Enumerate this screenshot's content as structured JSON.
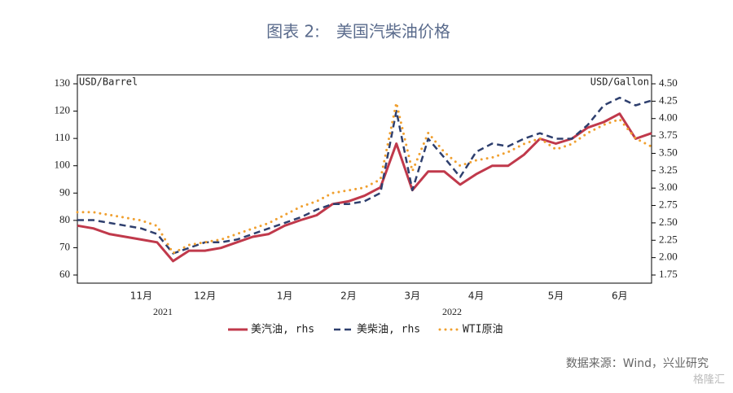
{
  "chart_data": {
    "type": "line",
    "title": "图表 2:　美国汽柴油价格",
    "ylabel": "USD/Barrel",
    "y2label": "USD/Gallon",
    "categories": [
      null,
      null,
      null,
      null,
      "11月",
      null,
      null,
      null,
      "12月",
      null,
      null,
      null,
      null,
      "1月",
      null,
      null,
      null,
      "2月",
      null,
      null,
      null,
      "3月",
      null,
      null,
      null,
      "4月",
      null,
      null,
      null,
      null,
      "5月",
      null,
      null,
      null,
      "6月",
      null,
      null
    ],
    "year_labels": [
      "2021",
      "2022"
    ],
    "series": [
      {
        "name": "美汽油, rhs",
        "color": "#c0394b",
        "axis": "y2",
        "style": "solid",
        "values": [
          2.46,
          2.42,
          2.34,
          2.3,
          2.26,
          2.22,
          1.95,
          2.1,
          2.1,
          2.14,
          2.22,
          2.3,
          2.34,
          2.46,
          2.54,
          2.61,
          2.77,
          2.81,
          2.89,
          3.01,
          3.64,
          2.97,
          3.24,
          3.24,
          3.05,
          3.2,
          3.32,
          3.32,
          3.48,
          3.71,
          3.64,
          3.71,
          3.87,
          3.95,
          4.07,
          3.71,
          3.79
        ]
      },
      {
        "name": "美柴油, rhs",
        "color": "#2e3f6e",
        "axis": "y2",
        "style": "dashed",
        "values": [
          2.54,
          2.54,
          2.5,
          2.46,
          2.42,
          2.34,
          2.06,
          2.14,
          2.22,
          2.22,
          2.26,
          2.34,
          2.42,
          2.5,
          2.58,
          2.69,
          2.77,
          2.77,
          2.81,
          2.93,
          4.11,
          2.97,
          3.71,
          3.44,
          3.16,
          3.52,
          3.64,
          3.6,
          3.71,
          3.79,
          3.71,
          3.71,
          3.91,
          4.19,
          4.3,
          4.19,
          4.26
        ]
      },
      {
        "name": "WTI原油",
        "color": "#f0a030",
        "axis": "y",
        "style": "dotted",
        "values": [
          83,
          83,
          82,
          81,
          80,
          78,
          68,
          71,
          72,
          73,
          75,
          77,
          79,
          82,
          85,
          87,
          90,
          91,
          92,
          95,
          123,
          98,
          112,
          105,
          100,
          102,
          103,
          105,
          108,
          110,
          106,
          108,
          112,
          115,
          117,
          110,
          107
        ]
      }
    ],
    "ylim": [
      60,
      130
    ],
    "yticks": [
      60,
      70,
      80,
      90,
      100,
      110,
      120,
      130
    ],
    "y2lim": [
      1.75,
      4.5
    ],
    "y2ticks": [
      1.75,
      {
        "value": 2,
        "label": "2.00"
      },
      2.25,
      {
        "value": 2.5,
        "label": "2.50"
      },
      2.75,
      {
        "value": 3,
        "label": "3.00"
      },
      3.25,
      {
        "value": 3.5,
        "label": "3.50"
      },
      3.75,
      {
        "value": 4,
        "label": "4.00"
      },
      4.25,
      {
        "value": 4.5,
        "label": "4.50"
      }
    ],
    "source": "数据来源：Wind，兴业研究",
    "watermark": "格隆汇"
  }
}
